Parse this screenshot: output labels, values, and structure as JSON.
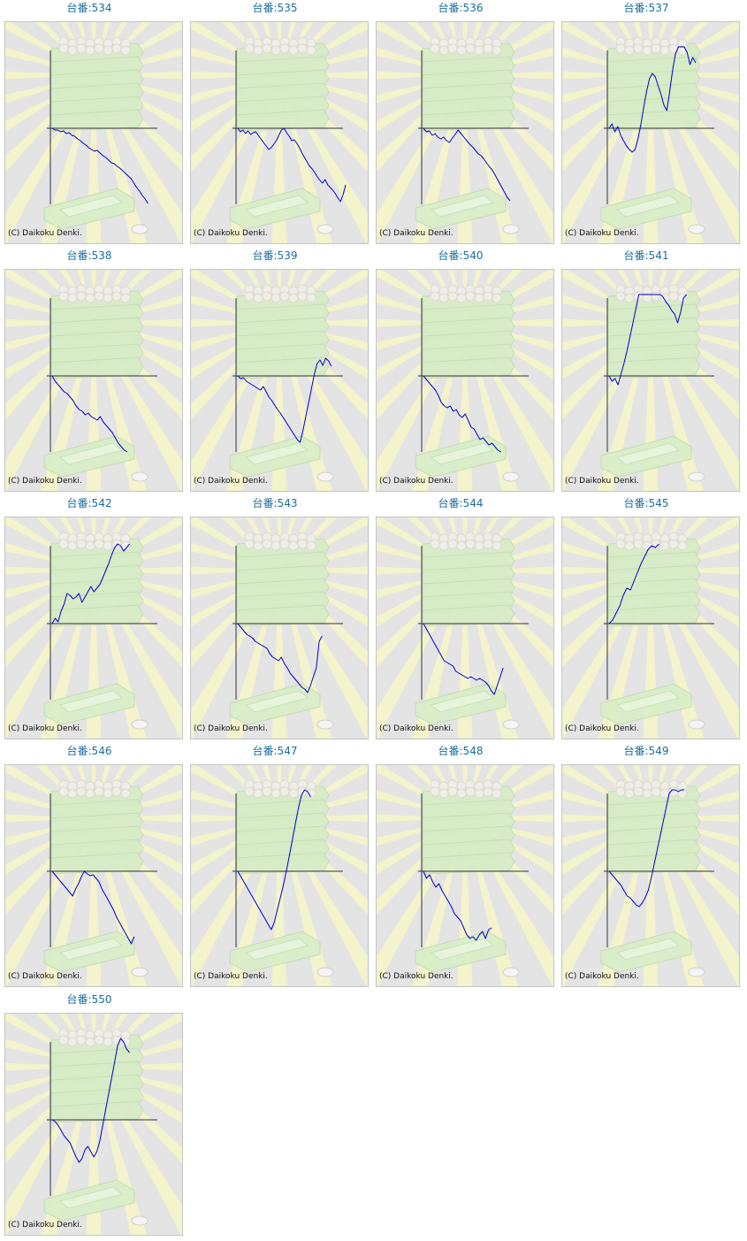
{
  "copyright": "(C) Daikoku Denki.",
  "colors": {
    "title": "#1a6e9e",
    "line": "#0000cc",
    "axis": "#333333",
    "background": "#e4e4e4"
  },
  "chart_data": [
    {
      "type": "line",
      "title": "台番:534",
      "values": [
        0,
        -2,
        -2,
        -4,
        -3,
        -6,
        -5,
        -8,
        -9,
        -12,
        -14,
        -17,
        -19,
        -22,
        -24,
        -26,
        -25,
        -28,
        -31,
        -33,
        -36,
        -39,
        -40,
        -43,
        -45,
        -48,
        -51,
        -54,
        -57,
        -62,
        -67,
        -71,
        -76,
        -80,
        -85
      ]
    },
    {
      "type": "line",
      "title": "台番:535",
      "values": [
        0,
        -4,
        -2,
        -6,
        -3,
        -7,
        -5,
        -4,
        -8,
        -12,
        -16,
        -20,
        -24,
        -22,
        -18,
        -14,
        -8,
        -2,
        0,
        -5,
        -9,
        -14,
        -13,
        -17,
        -22,
        -28,
        -33,
        -38,
        -43,
        -46,
        -50,
        -55,
        -59,
        -62,
        -58,
        -64,
        -67,
        -70,
        -74,
        -79,
        -83,
        -75,
        -64
      ]
    },
    {
      "type": "line",
      "title": "台番:536",
      "values": [
        0,
        -4,
        -3,
        -8,
        -6,
        -10,
        -12,
        -10,
        -14,
        -16,
        -11,
        -7,
        -2,
        -6,
        -10,
        -14,
        -18,
        -21,
        -25,
        -29,
        -31,
        -35,
        -40,
        -44,
        -48,
        -54,
        -60,
        -66,
        -72,
        -78,
        -82
      ]
    },
    {
      "type": "line",
      "title": "台番:537",
      "values": [
        0,
        5,
        -4,
        2,
        -8,
        -14,
        -20,
        -24,
        -27,
        -24,
        -12,
        4,
        24,
        42,
        56,
        62,
        58,
        48,
        38,
        26,
        20,
        42,
        66,
        84,
        96,
        102,
        96,
        86,
        72,
        80,
        74
      ]
    },
    {
      "type": "line",
      "title": "台番:538",
      "values": [
        0,
        -6,
        -10,
        -14,
        -18,
        -20,
        -24,
        -28,
        -34,
        -38,
        -40,
        -44,
        -42,
        -46,
        -48,
        -50,
        -46,
        -52,
        -56,
        -60,
        -64,
        -70,
        -76,
        -80,
        -84,
        -86
      ]
    },
    {
      "type": "line",
      "title": "台番:539",
      "values": [
        0,
        -3,
        -2,
        -6,
        -8,
        -10,
        -12,
        -14,
        -16,
        -12,
        -18,
        -24,
        -28,
        -33,
        -38,
        -42,
        -47,
        -52,
        -57,
        -62,
        -67,
        -72,
        -75,
        -62,
        -46,
        -30,
        -14,
        2,
        14,
        18,
        12,
        20,
        17,
        11
      ]
    },
    {
      "type": "line",
      "title": "台番:540",
      "values": [
        0,
        -4,
        -8,
        -12,
        -16,
        -22,
        -30,
        -34,
        -36,
        -34,
        -40,
        -38,
        -44,
        -47,
        -43,
        -50,
        -58,
        -60,
        -66,
        -72,
        -70,
        -74,
        -78,
        -76,
        -80,
        -84,
        -87
      ]
    },
    {
      "type": "line",
      "title": "台番:541",
      "values": [
        0,
        -6,
        -3,
        -10,
        2,
        14,
        28,
        44,
        60,
        76,
        92,
        108,
        116,
        110,
        104,
        102,
        98,
        96,
        90,
        84,
        80,
        74,
        70,
        60,
        72,
        88,
        104
      ]
    },
    {
      "type": "line",
      "title": "台番:542",
      "values": [
        0,
        6,
        2,
        14,
        22,
        34,
        32,
        28,
        30,
        34,
        24,
        30,
        36,
        42,
        36,
        40,
        44,
        52,
        60,
        68,
        78,
        86,
        90,
        88,
        82,
        86,
        90
      ]
    },
    {
      "type": "line",
      "title": "台番:543",
      "values": [
        0,
        -4,
        -8,
        -12,
        -14,
        -16,
        -20,
        -22,
        -24,
        -26,
        -28,
        -34,
        -38,
        -40,
        -42,
        -38,
        -45,
        -50,
        -56,
        -60,
        -64,
        -68,
        -72,
        -74,
        -78,
        -70,
        -60,
        -50,
        -20,
        -14
      ]
    },
    {
      "type": "line",
      "title": "台番:544",
      "values": [
        0,
        -6,
        -12,
        -18,
        -24,
        -30,
        -36,
        -42,
        -44,
        -46,
        -48,
        -54,
        -56,
        -58,
        -60,
        -62,
        -60,
        -62,
        -64,
        -62,
        -64,
        -66,
        -70,
        -76,
        -80,
        -70,
        -60,
        -50
      ]
    },
    {
      "type": "line",
      "title": "台番:545",
      "values": [
        0,
        4,
        12,
        20,
        32,
        40,
        38,
        48,
        58,
        68,
        76,
        84,
        88,
        86,
        90
      ]
    },
    {
      "type": "line",
      "title": "台番:546",
      "values": [
        0,
        -4,
        -8,
        -12,
        -16,
        -20,
        -24,
        -28,
        -20,
        -14,
        -6,
        0,
        -3,
        -5,
        -4,
        -8,
        -12,
        -20,
        -26,
        -32,
        -38,
        -44,
        -52,
        -58,
        -64,
        -70,
        -76,
        -82,
        -74
      ]
    },
    {
      "type": "line",
      "title": "台番:547",
      "values": [
        0,
        -6,
        -12,
        -18,
        -24,
        -30,
        -36,
        -42,
        -48,
        -54,
        -60,
        -66,
        -58,
        -44,
        -30,
        -16,
        0,
        18,
        36,
        54,
        72,
        86,
        96,
        90,
        84
      ]
    },
    {
      "type": "line",
      "title": "台番:548",
      "values": [
        0,
        -8,
        -4,
        -12,
        -18,
        -14,
        -22,
        -28,
        -34,
        -40,
        -48,
        -52,
        -56,
        -64,
        -72,
        -76,
        -74,
        -78,
        -72,
        -68,
        -76,
        -66,
        -64
      ]
    },
    {
      "type": "line",
      "title": "台番:549",
      "values": [
        0,
        -4,
        -8,
        -12,
        -16,
        -22,
        -28,
        -30,
        -34,
        -38,
        -40,
        -36,
        -30,
        -22,
        -8,
        8,
        24,
        40,
        56,
        72,
        88,
        100,
        96,
        90,
        96,
        104
      ]
    },
    {
      "type": "line",
      "title": "台番:550",
      "values": [
        0,
        -2,
        -6,
        -12,
        -18,
        -22,
        -26,
        -34,
        -42,
        -48,
        -44,
        -34,
        -30,
        -36,
        -42,
        -36,
        -24,
        -6,
        12,
        30,
        48,
        66,
        84,
        96,
        88,
        80,
        76
      ]
    }
  ]
}
